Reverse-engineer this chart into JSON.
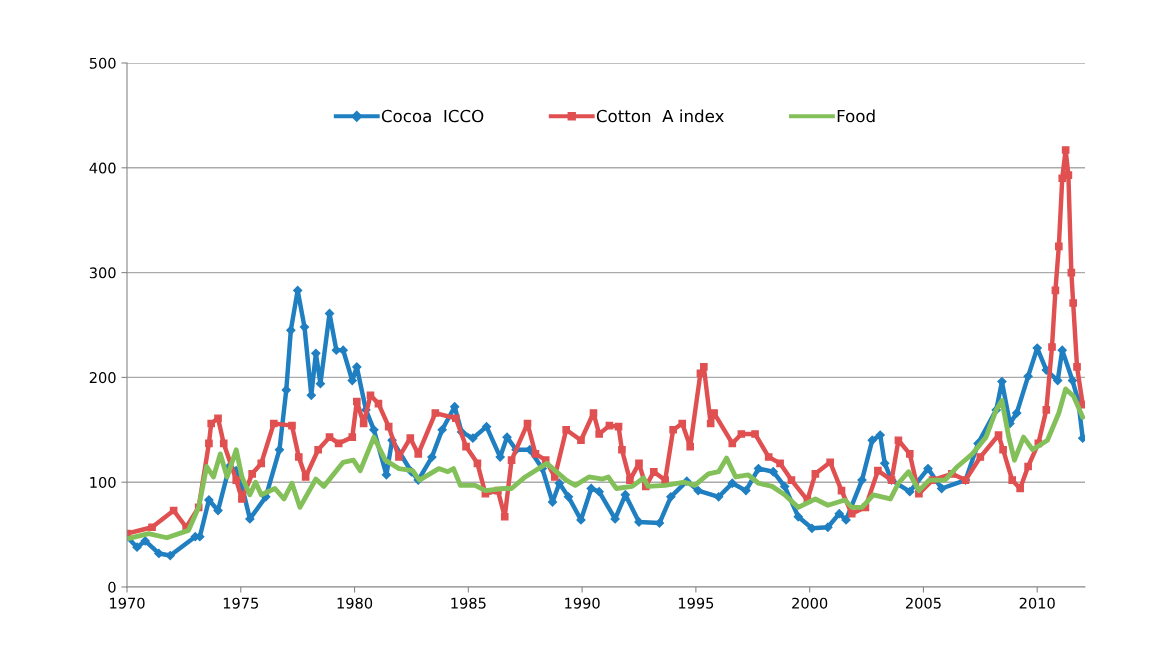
{
  "chart_data": {
    "type": "line",
    "xlim": [
      1970,
      2012.1
    ],
    "xticks": [
      1970,
      1975,
      1980,
      1985,
      1990,
      1995,
      2000,
      2005,
      2010
    ],
    "ylim": [
      0,
      500
    ],
    "yticks": [
      0,
      100,
      200,
      300,
      400,
      500
    ],
    "grid": "y",
    "legend": "top",
    "line_style": "solid",
    "series": [
      {
        "name": "Cocoa  ICCO",
        "color": "#1f7fc1",
        "marker": "diamond",
        "x": [
          1970.0,
          1970.44,
          1970.8,
          1971.4,
          1971.9,
          1973.0,
          1973.2,
          1973.6,
          1974.0,
          1974.5,
          1974.8,
          1975.1,
          1975.4,
          1976.1,
          1976.7,
          1977.0,
          1977.2,
          1977.5,
          1977.8,
          1978.1,
          1978.3,
          1978.5,
          1978.9,
          1979.2,
          1979.5,
          1979.9,
          1980.1,
          1980.5,
          1980.85,
          1981.4,
          1981.65,
          1982.5,
          1982.8,
          1983.4,
          1983.85,
          1984.4,
          1984.7,
          1985.2,
          1985.8,
          1986.4,
          1986.7,
          1987.1,
          1987.7,
          1988.25,
          1988.7,
          1989.0,
          1989.4,
          1989.95,
          1990.4,
          1990.75,
          1991.45,
          1991.9,
          1992.5,
          1993.4,
          1993.9,
          1994.6,
          1995.1,
          1996.0,
          1996.6,
          1997.2,
          1997.75,
          1998.4,
          1998.9,
          1999.5,
          2000.1,
          2000.8,
          2001.3,
          2001.6,
          2002.3,
          2002.75,
          2003.1,
          2003.3,
          2003.6,
          2004.4,
          2005.2,
          2005.8,
          2006.85,
          2007.4,
          2008.2,
          2008.45,
          2008.8,
          2009.1,
          2009.6,
          2010.0,
          2010.4,
          2010.9,
          2011.1,
          2011.55,
          2011.8,
          2012.0
        ],
        "values": [
          48,
          38,
          44,
          32,
          30,
          48,
          48,
          83,
          73,
          115,
          111,
          92,
          65,
          86,
          131,
          188,
          245,
          283,
          248,
          183,
          223,
          194,
          261,
          226,
          226,
          197,
          210,
          169,
          150,
          107,
          140,
          110,
          102,
          124,
          150,
          172,
          148,
          142,
          153,
          124,
          143,
          131,
          131,
          113,
          81,
          99,
          86,
          64,
          94,
          91,
          65,
          88,
          62,
          61,
          86,
          101,
          92,
          86,
          99,
          92,
          113,
          110,
          96,
          67,
          56,
          57,
          70,
          64,
          102,
          140,
          145,
          118,
          102,
          91,
          113,
          94,
          102,
          137,
          169,
          196,
          156,
          166,
          201,
          228,
          207,
          197,
          226,
          197,
          178,
          142
        ]
      },
      {
        "name": "Cotton  A index",
        "color": "#e05050",
        "marker": "square",
        "x": [
          1970.0,
          1971.1,
          1972.05,
          1972.6,
          1973.15,
          1973.6,
          1973.7,
          1974.0,
          1974.25,
          1974.8,
          1975.05,
          1975.5,
          1975.9,
          1976.45,
          1977.25,
          1977.55,
          1977.85,
          1978.4,
          1978.9,
          1979.3,
          1979.9,
          1980.1,
          1980.4,
          1980.7,
          1981.05,
          1981.5,
          1981.95,
          1982.45,
          1982.8,
          1983.55,
          1984.45,
          1984.9,
          1985.4,
          1985.75,
          1986.3,
          1986.6,
          1986.9,
          1987.6,
          1987.95,
          1988.4,
          1988.8,
          1989.3,
          1989.95,
          1990.5,
          1990.75,
          1991.2,
          1991.6,
          1991.75,
          1992.1,
          1992.5,
          1992.8,
          1993.15,
          1993.65,
          1994.0,
          1994.4,
          1994.75,
          1995.2,
          1995.35,
          1995.65,
          1995.8,
          1996.6,
          1997.0,
          1997.6,
          1998.2,
          1998.7,
          1999.2,
          1999.9,
          2000.25,
          2000.9,
          2001.4,
          2001.85,
          2002.45,
          2003.0,
          2003.6,
          2003.9,
          2004.4,
          2004.8,
          2005.4,
          2006.25,
          2006.85,
          2007.5,
          2008.3,
          2008.5,
          2008.9,
          2009.25,
          2009.6,
          2010.05,
          2010.4,
          2010.65,
          2010.8,
          2010.95,
          2011.1,
          2011.25,
          2011.37,
          2011.5,
          2011.58,
          2011.75,
          2012.0
        ],
        "values": [
          51,
          57,
          73,
          57,
          76,
          137,
          156,
          161,
          137,
          102,
          84,
          108,
          118,
          156,
          154,
          124,
          105,
          131,
          143,
          137,
          143,
          177,
          156,
          183,
          175,
          153,
          124,
          142,
          127,
          166,
          161,
          134,
          118,
          89,
          92,
          67,
          121,
          156,
          127,
          121,
          105,
          150,
          140,
          166,
          146,
          154,
          153,
          131,
          102,
          118,
          96,
          110,
          102,
          150,
          156,
          134,
          204,
          210,
          156,
          166,
          137,
          146,
          146,
          124,
          118,
          102,
          83,
          108,
          119,
          92,
          70,
          76,
          111,
          102,
          140,
          127,
          89,
          102,
          108,
          102,
          124,
          145,
          131,
          102,
          94,
          115,
          137,
          169,
          229,
          283,
          325,
          390,
          417,
          393,
          300,
          271,
          210,
          174
        ]
      },
      {
        "name": "Food",
        "color": "#84c05a",
        "marker": "none",
        "x": [
          1970.0,
          1970.95,
          1971.75,
          1972.7,
          1973.15,
          1973.5,
          1973.8,
          1974.1,
          1974.4,
          1974.8,
          1975.05,
          1975.4,
          1975.65,
          1975.9,
          1976.5,
          1976.9,
          1977.25,
          1977.6,
          1978.3,
          1978.65,
          1979.5,
          1979.95,
          1980.25,
          1980.85,
          1981.35,
          1981.95,
          1982.55,
          1982.85,
          1983.7,
          1984.1,
          1984.35,
          1984.65,
          1985.3,
          1985.75,
          1986.55,
          1986.9,
          1987.5,
          1988.45,
          1989.3,
          1989.7,
          1990.3,
          1990.9,
          1991.15,
          1991.5,
          1992.2,
          1992.7,
          1992.9,
          1993.65,
          1994.5,
          1994.95,
          1995.55,
          1996.0,
          1996.35,
          1996.75,
          1997.3,
          1997.75,
          1998.35,
          1998.9,
          1999.5,
          2000.25,
          2000.8,
          2001.55,
          2001.85,
          2002.3,
          2002.8,
          2003.55,
          2003.9,
          2004.35,
          2004.8,
          2005.25,
          2005.95,
          2006.5,
          2007.15,
          2007.75,
          2008.2,
          2008.45,
          2008.75,
          2009.0,
          2009.4,
          2009.8,
          2010.45,
          2010.95,
          2011.25,
          2011.6,
          2012.0
        ],
        "values": [
          46,
          51,
          47,
          54,
          76,
          115,
          105,
          127,
          105,
          131,
          105,
          88,
          100,
          88,
          94,
          84,
          99,
          76,
          103,
          96,
          119,
          121,
          111,
          143,
          121,
          113,
          111,
          102,
          113,
          110,
          113,
          97,
          97,
          92,
          94,
          94,
          105,
          118,
          102,
          97,
          105,
          103,
          105,
          94,
          96,
          104,
          96,
          97,
          100,
          97,
          108,
          110,
          123,
          105,
          107,
          99,
          96,
          88,
          76,
          84,
          78,
          83,
          76,
          76,
          88,
          84,
          99,
          110,
          92,
          102,
          102,
          115,
          127,
          143,
          169,
          178,
          143,
          121,
          143,
          131,
          140,
          166,
          189,
          182,
          162
        ]
      }
    ]
  }
}
